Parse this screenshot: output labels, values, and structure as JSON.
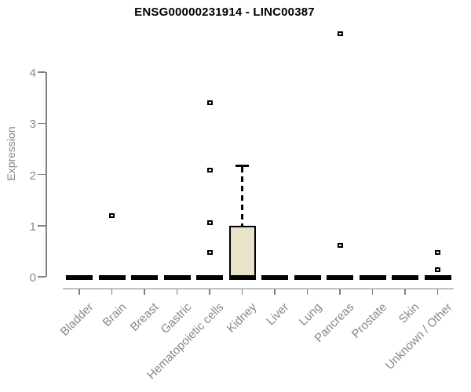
{
  "chart_data": {
    "type": "box",
    "title": "ENSG00000231914 - LINC00387",
    "xlabel": "",
    "ylabel": "Expression",
    "ylim": [
      0,
      4
    ],
    "yticks": [
      0,
      1,
      2,
      3,
      4
    ],
    "grid": false,
    "legend": "none",
    "categories": [
      "Bladder",
      "Brain",
      "Breast",
      "Gastric",
      "Hematopoietic cells",
      "Kidney",
      "Liver",
      "Lung",
      "Pancreas",
      "Prostate",
      "Skin",
      "Unknown / Other"
    ],
    "boxes": [
      {
        "category": "Bladder",
        "q1": 0,
        "median": 0,
        "q3": 0,
        "whisker_low": 0,
        "whisker_high": 0,
        "outliers": []
      },
      {
        "category": "Brain",
        "q1": 0,
        "median": 0,
        "q3": 0,
        "whisker_low": 0,
        "whisker_high": 0,
        "outliers": [
          1.2
        ]
      },
      {
        "category": "Breast",
        "q1": 0,
        "median": 0,
        "q3": 0,
        "whisker_low": 0,
        "whisker_high": 0,
        "outliers": []
      },
      {
        "category": "Gastric",
        "q1": 0,
        "median": 0,
        "q3": 0,
        "whisker_low": 0,
        "whisker_high": 0,
        "outliers": []
      },
      {
        "category": "Hematopoietic cells",
        "q1": 0,
        "median": 0,
        "q3": 0,
        "whisker_low": 0,
        "whisker_high": 0,
        "outliers": [
          3.4,
          2.08,
          1.05,
          0.48
        ]
      },
      {
        "category": "Kidney",
        "q1": 0,
        "median": 0,
        "q3": 1.0,
        "whisker_low": 0,
        "whisker_high": 2.17,
        "outliers": []
      },
      {
        "category": "Liver",
        "q1": 0,
        "median": 0,
        "q3": 0,
        "whisker_low": 0,
        "whisker_high": 0,
        "outliers": []
      },
      {
        "category": "Lung",
        "q1": 0,
        "median": 0,
        "q3": 0,
        "whisker_low": 0,
        "whisker_high": 0,
        "outliers": []
      },
      {
        "category": "Pancreas",
        "q1": 0,
        "median": 0,
        "q3": 0,
        "whisker_low": 0,
        "whisker_high": 0,
        "outliers": [
          4.75,
          0.61
        ]
      },
      {
        "category": "Prostate",
        "q1": 0,
        "median": 0,
        "q3": 0,
        "whisker_low": 0,
        "whisker_high": 0,
        "outliers": []
      },
      {
        "category": "Skin",
        "q1": 0,
        "median": 0,
        "q3": 0,
        "whisker_low": 0,
        "whisker_high": 0,
        "outliers": []
      },
      {
        "category": "Unknown / Other",
        "q1": 0,
        "median": 0,
        "q3": 0,
        "whisker_low": 0,
        "whisker_high": 0,
        "outliers": [
          0.47,
          0.14
        ]
      }
    ],
    "colors": {
      "box_fill": "#e9e4c9",
      "box_stroke": "#000000",
      "axis": "#818181",
      "tick_label": "#878787",
      "title": "#000000"
    }
  }
}
